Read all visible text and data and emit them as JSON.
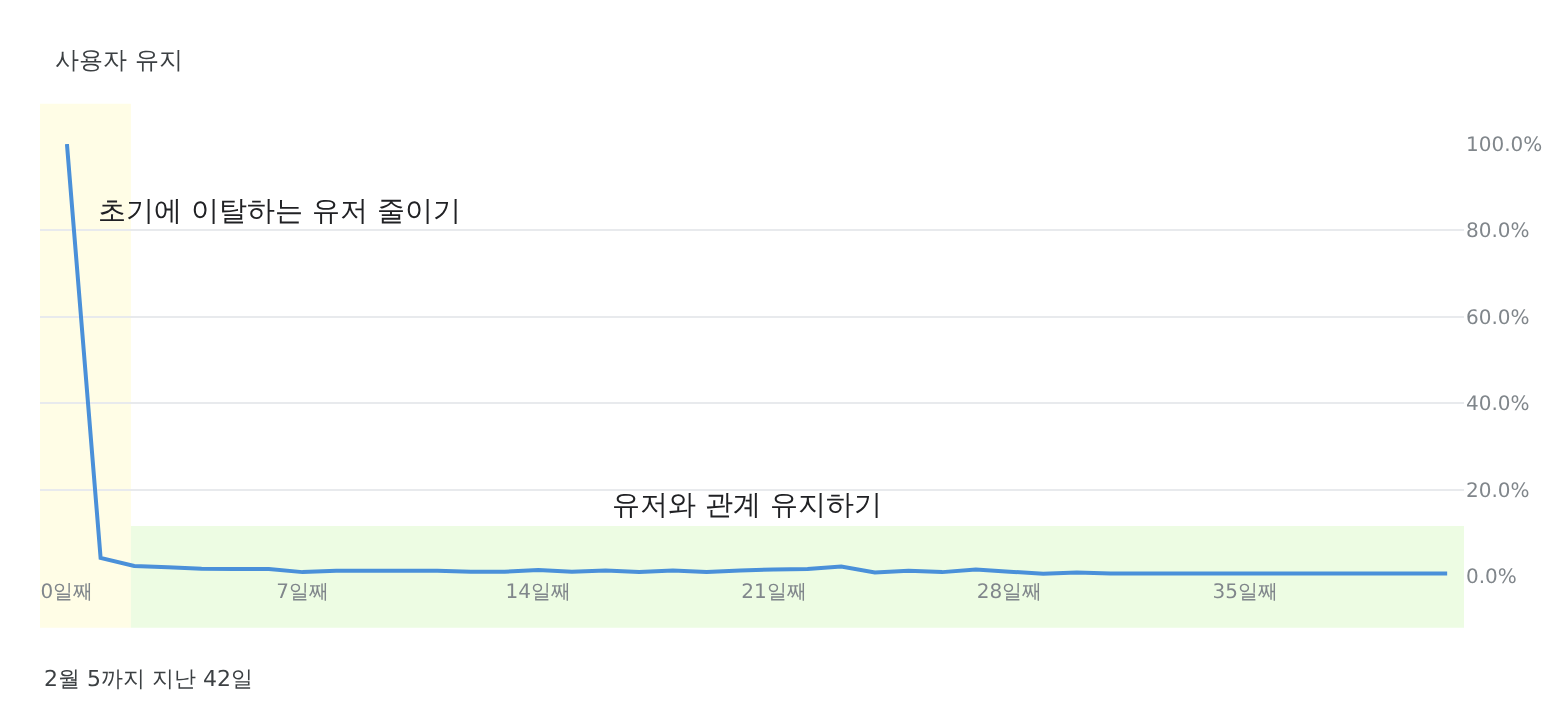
{
  "chart_data": {
    "type": "line",
    "title": "사용자 유지",
    "x": [
      0,
      1,
      2,
      3,
      4,
      5,
      6,
      7,
      8,
      9,
      10,
      11,
      12,
      13,
      14,
      15,
      16,
      17,
      18,
      19,
      20,
      21,
      22,
      23,
      24,
      25,
      26,
      27,
      28,
      29,
      30,
      31,
      32,
      33,
      34,
      35,
      36,
      37,
      38,
      39,
      40,
      41
    ],
    "series": [
      {
        "color": "#4a90d9",
        "values": [
          100,
          4.2,
          2.3,
          2.0,
          1.7,
          1.6,
          1.6,
          0.9,
          1.2,
          1.2,
          1.2,
          1.2,
          1.0,
          1.0,
          1.4,
          1.0,
          1.3,
          0.9,
          1.3,
          0.9,
          1.3,
          1.5,
          1.6,
          2.2,
          0.8,
          1.2,
          0.9,
          1.5,
          1.0,
          0.5,
          0.8,
          0.6,
          0.6,
          0.6,
          0.6,
          0.6,
          0.6,
          0.6,
          0.6,
          0.6,
          0.6,
          0.6
        ]
      }
    ],
    "xlim": [
      -0.8,
      41.5
    ],
    "xticks": [
      {
        "value": 0,
        "label": "0일째"
      },
      {
        "value": 7,
        "label": "7일째"
      },
      {
        "value": 14,
        "label": "14일째"
      },
      {
        "value": 21,
        "label": "21일째"
      },
      {
        "value": 28,
        "label": "28일째"
      },
      {
        "value": 35,
        "label": "35일째"
      }
    ],
    "ylim": [
      0,
      100
    ],
    "yticks": [
      {
        "value": 0,
        "label": "0.0%"
      },
      {
        "value": 20,
        "label": "20.0%"
      },
      {
        "value": 40,
        "label": "40.0%"
      },
      {
        "value": 60,
        "label": "60.0%"
      },
      {
        "value": 80,
        "label": "80.0%"
      },
      {
        "value": 100,
        "label": "100.0%"
      }
    ],
    "grid": "y",
    "marker": "none",
    "line_style": "solid",
    "bands": [
      {
        "axis": "x",
        "from": -0.8,
        "to": 1.9,
        "label": "초기에 이탈하는 유저 줄이기",
        "color": "#fffde6"
      },
      {
        "axis": "x",
        "from": 1.9,
        "to": 41.5,
        "label": "유저와 관계 유지하기",
        "color": "#edfce3"
      }
    ],
    "annotations": [
      "2월 5까지 지난 42일"
    ]
  }
}
